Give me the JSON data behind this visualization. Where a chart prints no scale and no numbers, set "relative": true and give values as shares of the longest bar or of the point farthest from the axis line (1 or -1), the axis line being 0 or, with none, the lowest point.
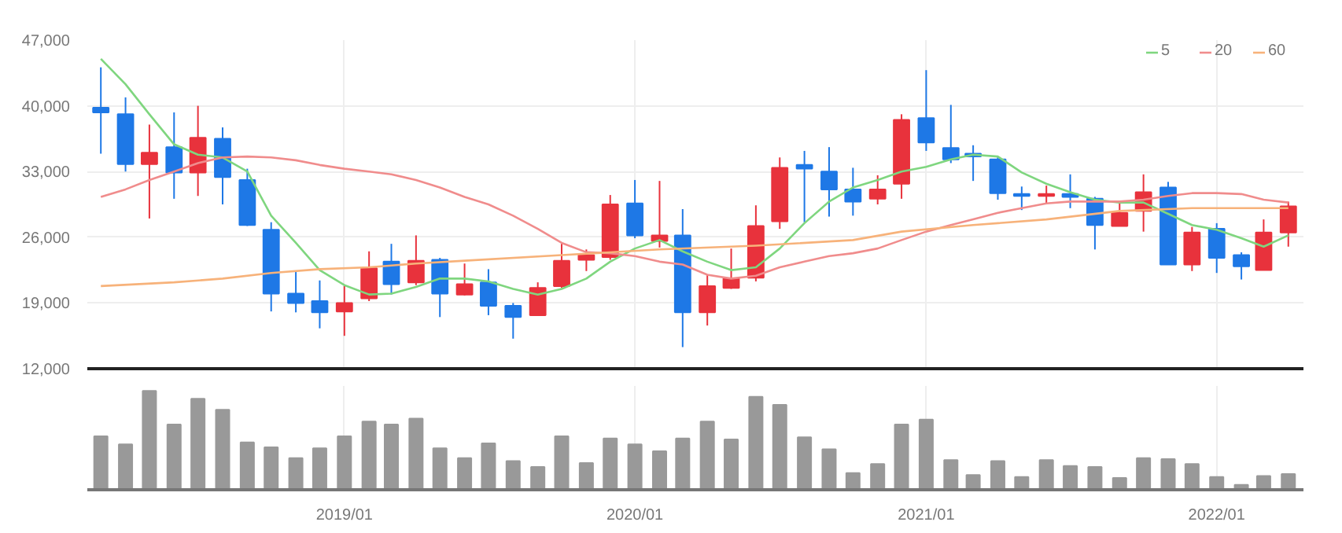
{
  "chart_data": [
    {
      "type": "candlestick",
      "x": [
        "2018-03",
        "2018-04",
        "2018-05",
        "2018-06",
        "2018-07",
        "2018-08",
        "2018-09",
        "2018-10",
        "2018-11",
        "2018-12",
        "2019-01",
        "2019-02",
        "2019-03",
        "2019-04",
        "2019-05",
        "2019-06",
        "2019-07",
        "2019-08",
        "2019-09",
        "2019-10",
        "2019-11",
        "2019-12",
        "2020-01",
        "2020-02",
        "2020-03",
        "2020-04",
        "2020-05",
        "2020-06",
        "2020-07",
        "2020-08",
        "2020-09",
        "2020-10",
        "2020-11",
        "2020-12",
        "2021-01",
        "2021-02",
        "2021-03",
        "2021-04",
        "2021-05",
        "2021-06",
        "2021-07",
        "2021-08",
        "2021-09",
        "2021-10",
        "2021-11",
        "2021-12",
        "2022-01",
        "2022-02",
        "2022-03",
        "2022-04"
      ],
      "ohlc": [
        [
          39800,
          44100,
          34900,
          39300
        ],
        [
          39100,
          40900,
          33000,
          33800
        ],
        [
          33800,
          38000,
          28000,
          35000
        ],
        [
          35600,
          39300,
          30100,
          32900
        ],
        [
          32900,
          40000,
          30400,
          36600
        ],
        [
          36500,
          37700,
          29500,
          32400
        ],
        [
          32100,
          33300,
          27200,
          27300
        ],
        [
          26800,
          27600,
          18100,
          20000
        ],
        [
          20000,
          22400,
          18000,
          19000
        ],
        [
          19200,
          21400,
          16300,
          18000
        ],
        [
          18100,
          20800,
          15500,
          19000
        ],
        [
          19500,
          24500,
          19200,
          22700
        ],
        [
          23400,
          25300,
          19900,
          21000
        ],
        [
          21200,
          26200,
          20900,
          23500
        ],
        [
          23600,
          23800,
          17500,
          20000
        ],
        [
          19900,
          23200,
          19800,
          21000
        ],
        [
          21200,
          22600,
          17700,
          18700
        ],
        [
          18700,
          19000,
          15200,
          17500
        ],
        [
          17700,
          21200,
          17700,
          20600
        ],
        [
          20800,
          25300,
          20600,
          23500
        ],
        [
          23600,
          24700,
          22400,
          24100
        ],
        [
          23900,
          30500,
          23600,
          29500
        ],
        [
          29600,
          32100,
          25900,
          26200
        ],
        [
          25600,
          32000,
          24900,
          26200
        ],
        [
          26200,
          29000,
          14300,
          18000
        ],
        [
          18000,
          22000,
          16600,
          20800
        ],
        [
          20600,
          24800,
          20500,
          21600
        ],
        [
          21700,
          29400,
          21300,
          27200
        ],
        [
          27700,
          34500,
          26900,
          33400
        ],
        [
          33700,
          35200,
          27600,
          33300
        ],
        [
          33000,
          35600,
          28200,
          31100
        ],
        [
          31100,
          33400,
          28300,
          29800
        ],
        [
          30100,
          32600,
          29500,
          31100
        ],
        [
          31700,
          39100,
          30100,
          38500
        ],
        [
          38700,
          43800,
          35200,
          36100
        ],
        [
          35500,
          40100,
          33900,
          34300
        ],
        [
          34900,
          35800,
          32000,
          34600
        ],
        [
          34300,
          34600,
          30000,
          30700
        ],
        [
          30600,
          31400,
          28900,
          30400
        ],
        [
          30400,
          31500,
          29600,
          30600
        ],
        [
          30600,
          32700,
          29100,
          30300
        ],
        [
          30100,
          30300,
          24700,
          27300
        ],
        [
          27200,
          29800,
          27200,
          28600
        ],
        [
          28800,
          32700,
          26600,
          30800
        ],
        [
          31300,
          31900,
          23100,
          23100
        ],
        [
          23100,
          27100,
          22400,
          26500
        ],
        [
          26900,
          27500,
          22200,
          23800
        ],
        [
          24100,
          24400,
          21500,
          22900
        ],
        [
          22500,
          27900,
          22500,
          26500
        ],
        [
          26500,
          29800,
          25000,
          29300
        ]
      ],
      "colors": [
        "#1e78e6",
        "#1e78e6",
        "#e8323c",
        "#1e78e6",
        "#e8323c",
        "#1e78e6",
        "#1e78e6",
        "#1e78e6",
        "#1e78e6",
        "#1e78e6",
        "#e8323c",
        "#e8323c",
        "#1e78e6",
        "#e8323c",
        "#1e78e6",
        "#e8323c",
        "#1e78e6",
        "#1e78e6",
        "#e8323c",
        "#e8323c",
        "#e8323c",
        "#e8323c",
        "#1e78e6",
        "#e8323c",
        "#1e78e6",
        "#e8323c",
        "#e8323c",
        "#e8323c",
        "#e8323c",
        "#1e78e6",
        "#1e78e6",
        "#1e78e6",
        "#e8323c",
        "#e8323c",
        "#1e78e6",
        "#1e78e6",
        "#1e78e6",
        "#1e78e6",
        "#1e78e6",
        "#e8323c",
        "#1e78e6",
        "#1e78e6",
        "#e8323c",
        "#e8323c",
        "#1e78e6",
        "#e8323c",
        "#1e78e6",
        "#1e78e6",
        "#e8323c",
        "#e8323c"
      ],
      "series": [
        {
          "name": "5",
          "type": "line",
          "color": "#7fd67f",
          "values": [
            45000,
            42300,
            39100,
            35900,
            34800,
            34500,
            33000,
            28300,
            25400,
            22500,
            20900,
            19900,
            20000,
            20700,
            21600,
            21600,
            21300,
            20500,
            19900,
            20500,
            21600,
            23400,
            24800,
            25700,
            24500,
            23400,
            22500,
            22800,
            24800,
            27500,
            29800,
            31300,
            32100,
            33000,
            33500,
            34300,
            34800,
            34600,
            32900,
            31700,
            30800,
            30000,
            29700,
            29700,
            28500,
            27300,
            26800,
            25900,
            25000,
            26200
          ]
        },
        {
          "name": "20",
          "type": "line",
          "color": "#f08c8c",
          "values": [
            30300,
            31100,
            32100,
            33000,
            33900,
            34500,
            34600,
            34500,
            34200,
            33700,
            33300,
            33000,
            32700,
            32100,
            31300,
            30300,
            29500,
            28300,
            26900,
            25400,
            24400,
            24300,
            24000,
            23400,
            23100,
            22000,
            21600,
            21900,
            22800,
            23400,
            24000,
            24300,
            24800,
            25700,
            26600,
            27300,
            27900,
            28600,
            29100,
            29600,
            29800,
            29800,
            29800,
            30000,
            30400,
            30700,
            30700,
            30600,
            30000,
            29700
          ]
        },
        {
          "name": "60",
          "type": "line",
          "color": "#f7b27a",
          "x": [
            "2018-03",
            "2018-06",
            "2018-08",
            "2018-10",
            "2018-12",
            "2019-02",
            "2019-04",
            "2019-06",
            "2019-10",
            "2020-02",
            "2020-06",
            "2020-10",
            "2020-12",
            "2021-03",
            "2021-06",
            "2021-09",
            "2021-12",
            "2022-04"
          ],
          "values": [
            20800,
            21200,
            21600,
            22200,
            22600,
            22800,
            23200,
            23500,
            24100,
            24700,
            25100,
            25700,
            26600,
            27300,
            27900,
            28800,
            29100,
            29100
          ]
        }
      ],
      "xlim": [
        "2018-02-12",
        "2022-04-20"
      ],
      "xticks": [
        {
          "value": "2019-01",
          "label": null
        },
        {
          "value": "2020-01",
          "label": null
        },
        {
          "value": "2021-01",
          "label": null
        },
        {
          "value": "2022-01",
          "label": null
        }
      ],
      "ylim": [
        12000,
        47000
      ],
      "yticks": [
        {
          "value": 12000,
          "label": "12,000"
        },
        {
          "value": 19000,
          "label": "19,000"
        },
        {
          "value": 26000,
          "label": "26,000"
        },
        {
          "value": 33000,
          "label": "33,000"
        },
        {
          "value": 40000,
          "label": "40,000"
        },
        {
          "value": 47000,
          "label": "47,000"
        }
      ],
      "grid": true,
      "legend": "top right",
      "tick_labels": "y"
    },
    {
      "type": "bar",
      "relative": true,
      "color": "#999999",
      "x": [
        "2018-03",
        "2018-04",
        "2018-05",
        "2018-06",
        "2018-07",
        "2018-08",
        "2018-09",
        "2018-10",
        "2018-11",
        "2018-12",
        "2019-01",
        "2019-02",
        "2019-03",
        "2019-04",
        "2019-05",
        "2019-06",
        "2019-07",
        "2019-08",
        "2019-09",
        "2019-10",
        "2019-11",
        "2019-12",
        "2020-01",
        "2020-02",
        "2020-03",
        "2020-04",
        "2020-05",
        "2020-06",
        "2020-07",
        "2020-08",
        "2020-09",
        "2020-10",
        "2020-11",
        "2020-12",
        "2021-01",
        "2021-02",
        "2021-03",
        "2021-04",
        "2021-05",
        "2021-06",
        "2021-07",
        "2021-08",
        "2021-09",
        "2021-10",
        "2021-11",
        "2021-12",
        "2022-01",
        "2022-02",
        "2022-03",
        "2022-04"
      ],
      "values": [
        0.54,
        0.46,
        1,
        0.66,
        0.92,
        0.81,
        0.48,
        0.43,
        0.32,
        0.42,
        0.54,
        0.69,
        0.66,
        0.72,
        0.42,
        0.32,
        0.47,
        0.29,
        0.23,
        0.54,
        0.27,
        0.52,
        0.46,
        0.39,
        0.52,
        0.69,
        0.51,
        0.94,
        0.86,
        0.53,
        0.41,
        0.17,
        0.26,
        0.66,
        0.71,
        0.3,
        0.15,
        0.29,
        0.13,
        0.3,
        0.24,
        0.23,
        0.12,
        0.32,
        0.31,
        0.26,
        0.13,
        0.05,
        0.14,
        0.16
      ],
      "xlim": [
        "2018-02-12",
        "2022-04-20"
      ],
      "xticks": [
        {
          "value": "2019-01",
          "label": "2019/01"
        },
        {
          "value": "2020-01",
          "label": "2020/01"
        },
        {
          "value": "2021-01",
          "label": "2021/01"
        },
        {
          "value": "2022-01",
          "label": "2022/01"
        }
      ],
      "grid": "x",
      "tick_labels": "x"
    }
  ]
}
